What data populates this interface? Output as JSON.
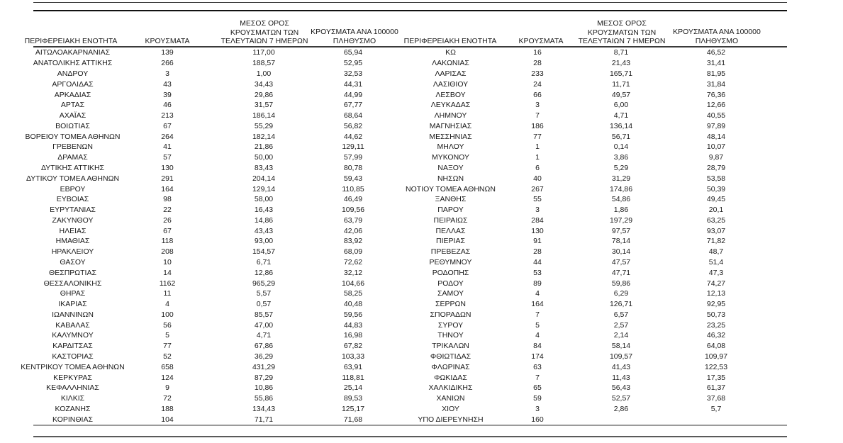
{
  "document": {
    "type": "statistics-table",
    "language": "el",
    "description_note": "Two side-by-side table halves listing Greek regional units with case counts"
  },
  "colors": {
    "background": "#ffffff",
    "text": "#1a1a1a",
    "rule_dark": "#111111",
    "rule_mid": "#3a3a3a",
    "rule_light": "#9a9a9a"
  },
  "header": {
    "region": "ΠΕΡΙΦΕΡΕΙΑΚΗ ΕΝΟΤΗΤΑ",
    "cases": "ΚΡΟΥΣΜΑΤΑ",
    "avg7_lines": [
      "ΜΕΣΟΣ ΟΡΟΣ",
      "ΚΡΟΥΣΜΑΤΩΝ ΤΩΝ",
      "ΤΕΛΕΥΤΑΙΩΝ 7 ΗΜΕΡΩΝ"
    ],
    "per100k_lines": [
      "ΚΡΟΥΣΜΑΤΑ ΑΝΑ 100000",
      "ΠΛΗΘΥΣΜΟ"
    ]
  },
  "tables": {
    "left": {
      "rows": [
        [
          "ΑΙΤΩΛΟΑΚΑΡΝΑΝΙΑΣ",
          "139",
          "117,00",
          "65,94"
        ],
        [
          "ΑΝΑΤΟΛΙΚΗΣ ΑΤΤΙΚΗΣ",
          "266",
          "188,57",
          "52,95"
        ],
        [
          "ΑΝΔΡΟΥ",
          "3",
          "1,00",
          "32,53"
        ],
        [
          "ΑΡΓΟΛΙΔΑΣ",
          "43",
          "34,43",
          "44,31"
        ],
        [
          "ΑΡΚΑΔΙΑΣ",
          "39",
          "29,86",
          "44,99"
        ],
        [
          "ΑΡΤΑΣ",
          "46",
          "31,57",
          "67,77"
        ],
        [
          "ΑΧΑΪΑΣ",
          "213",
          "186,14",
          "68,64"
        ],
        [
          "ΒΟΙΩΤΙΑΣ",
          "67",
          "55,29",
          "56,82"
        ],
        [
          "ΒΟΡΕΙΟΥ ΤΟΜΕΑ ΑΘΗΝΩΝ",
          "264",
          "182,14",
          "44,62"
        ],
        [
          "ΓΡΕΒΕΝΩΝ",
          "41",
          "21,86",
          "129,11"
        ],
        [
          "ΔΡΑΜΑΣ",
          "57",
          "50,00",
          "57,99"
        ],
        [
          "ΔΥΤΙΚΗΣ ΑΤΤΙΚΗΣ",
          "130",
          "83,43",
          "80,78"
        ],
        [
          "ΔΥΤΙΚΟΥ ΤΟΜΕΑ ΑΘΗΝΩΝ",
          "291",
          "204,14",
          "59,43"
        ],
        [
          "ΕΒΡΟΥ",
          "164",
          "129,14",
          "110,85"
        ],
        [
          "ΕΥΒΟΙΑΣ",
          "98",
          "58,00",
          "46,49"
        ],
        [
          "ΕΥΡΥΤΑΝΙΑΣ",
          "22",
          "16,43",
          "109,56"
        ],
        [
          "ΖΑΚΥΝΘΟΥ",
          "26",
          "14,86",
          "63,79"
        ],
        [
          "ΗΛΕΙΑΣ",
          "67",
          "43,43",
          "42,06"
        ],
        [
          "ΗΜΑΘΙΑΣ",
          "118",
          "93,00",
          "83,92"
        ],
        [
          "ΗΡΑΚΛΕΙΟΥ",
          "208",
          "154,57",
          "68,09"
        ],
        [
          "ΘΑΣΟΥ",
          "10",
          "6,71",
          "72,62"
        ],
        [
          "ΘΕΣΠΡΩΤΙΑΣ",
          "14",
          "12,86",
          "32,12"
        ],
        [
          "ΘΕΣΣΑΛΟΝΙΚΗΣ",
          "1162",
          "965,29",
          "104,66"
        ],
        [
          "ΘΗΡΑΣ",
          "11",
          "5,57",
          "58,25"
        ],
        [
          "ΙΚΑΡΙΑΣ",
          "4",
          "0,57",
          "40,48"
        ],
        [
          "ΙΩΑΝΝΙΝΩΝ",
          "100",
          "85,57",
          "59,56"
        ],
        [
          "ΚΑΒΑΛΑΣ",
          "56",
          "47,00",
          "44,83"
        ],
        [
          "ΚΑΛΥΜΝΟΥ",
          "5",
          "4,71",
          "16,98"
        ],
        [
          "ΚΑΡΔΙΤΣΑΣ",
          "77",
          "67,86",
          "67,82"
        ],
        [
          "ΚΑΣΤΟΡΙΑΣ",
          "52",
          "36,29",
          "103,33"
        ],
        [
          "ΚΕΝΤΡΙΚΟΥ ΤΟΜΕΑ ΑΘΗΝΩΝ",
          "658",
          "431,29",
          "63,91"
        ],
        [
          "ΚΕΡΚΥΡΑΣ",
          "124",
          "87,29",
          "118,81"
        ],
        [
          "ΚΕΦΑΛΛΗΝΙΑΣ",
          "9",
          "10,86",
          "25,14"
        ],
        [
          "ΚΙΛΚΙΣ",
          "72",
          "55,86",
          "89,53"
        ],
        [
          "ΚΟΖΑΝΗΣ",
          "188",
          "134,43",
          "125,17"
        ],
        [
          "ΚΟΡΙΝΘΙΑΣ",
          "104",
          "71,71",
          "71,68"
        ]
      ]
    },
    "right": {
      "rows": [
        [
          "ΚΩ",
          "16",
          "8,71",
          "46,52"
        ],
        [
          "ΛΑΚΩΝΙΑΣ",
          "28",
          "21,43",
          "31,41"
        ],
        [
          "ΛΑΡΙΣΑΣ",
          "233",
          "165,71",
          "81,95"
        ],
        [
          "ΛΑΣΙΘΙΟΥ",
          "24",
          "11,71",
          "31,84"
        ],
        [
          "ΛΕΣΒΟΥ",
          "66",
          "49,57",
          "76,36"
        ],
        [
          "ΛΕΥΚΑΔΑΣ",
          "3",
          "6,00",
          "12,66"
        ],
        [
          "ΛΗΜΝΟΥ",
          "7",
          "4,71",
          "40,55"
        ],
        [
          "ΜΑΓΝΗΣΙΑΣ",
          "186",
          "136,14",
          "97,89"
        ],
        [
          "ΜΕΣΣΗΝΙΑΣ",
          "77",
          "56,71",
          "48,14"
        ],
        [
          "ΜΗΛΟΥ",
          "1",
          "0,14",
          "10,07"
        ],
        [
          "ΜΥΚΟΝΟΥ",
          "1",
          "3,86",
          "9,87"
        ],
        [
          "ΝΑΞΟΥ",
          "6",
          "5,29",
          "28,79"
        ],
        [
          "ΝΗΣΩΝ",
          "40",
          "31,29",
          "53,58"
        ],
        [
          "ΝΟΤΙΟΥ ΤΟΜΕΑ ΑΘΗΝΩΝ",
          "267",
          "174,86",
          "50,39"
        ],
        [
          "ΞΑΝΘΗΣ",
          "55",
          "54,86",
          "49,45"
        ],
        [
          "ΠΑΡΟΥ",
          "3",
          "1,86",
          "20,1"
        ],
        [
          "ΠΕΙΡΑΙΩΣ",
          "284",
          "197,29",
          "63,25"
        ],
        [
          "ΠΕΛΛΑΣ",
          "130",
          "97,57",
          "93,07"
        ],
        [
          "ΠΙΕΡΙΑΣ",
          "91",
          "78,14",
          "71,82"
        ],
        [
          "ΠΡΕΒΕΖΑΣ",
          "28",
          "30,14",
          "48,7"
        ],
        [
          "ΡΕΘΥΜΝΟΥ",
          "44",
          "47,57",
          "51,4"
        ],
        [
          "ΡΟΔΟΠΗΣ",
          "53",
          "47,71",
          "47,3"
        ],
        [
          "ΡΟΔΟΥ",
          "89",
          "59,86",
          "74,27"
        ],
        [
          "ΣΑΜΟΥ",
          "4",
          "6,29",
          "12,13"
        ],
        [
          "ΣΕΡΡΩΝ",
          "164",
          "126,71",
          "92,95"
        ],
        [
          "ΣΠΟΡΑΔΩΝ",
          "7",
          "6,57",
          "50,73"
        ],
        [
          "ΣΥΡΟΥ",
          "5",
          "2,57",
          "23,25"
        ],
        [
          "ΤΗΝΟΥ",
          "4",
          "2,14",
          "46,32"
        ],
        [
          "ΤΡΙΚΑΛΩΝ",
          "84",
          "58,14",
          "64,08"
        ],
        [
          "ΦΘΙΩΤΙΔΑΣ",
          "174",
          "109,57",
          "109,97"
        ],
        [
          "ΦΛΩΡΙΝΑΣ",
          "63",
          "41,43",
          "122,53"
        ],
        [
          "ΦΩΚΙΔΑΣ",
          "7",
          "11,43",
          "17,35"
        ],
        [
          "ΧΑΛΚΙΔΙΚΗΣ",
          "65",
          "56,43",
          "61,37"
        ],
        [
          "ΧΑΝΙΩΝ",
          "59",
          "52,57",
          "37,68"
        ],
        [
          "ΧΙΟΥ",
          "3",
          "2,86",
          "5,7"
        ],
        [
          "ΥΠΟ ΔΙΕΡΕΥΝΗΣΗ",
          "160",
          "",
          ""
        ]
      ]
    }
  }
}
